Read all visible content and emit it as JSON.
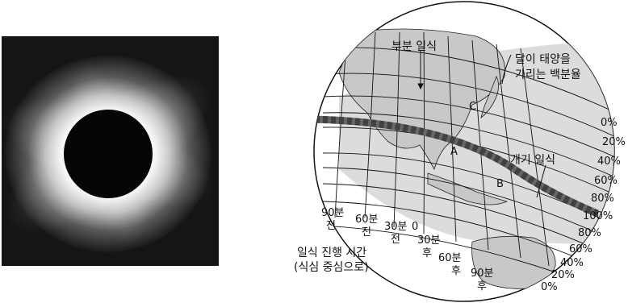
{
  "photo": {
    "subject": "total solar eclipse corona"
  },
  "map": {
    "labels": {
      "partial_eclipse": "부분 일식",
      "coverage_line1": "달이 태양을",
      "coverage_line2": "가리는 백분율",
      "annular_eclipse": "개기 일식",
      "point_a": "A",
      "point_b": "B",
      "point_c": "C",
      "time_title_line1": "일식 진행 시간",
      "time_title_line2": "(식심 중심으로)"
    },
    "time_labels": [
      {
        "line1": "90분",
        "line2": "전"
      },
      {
        "line1": "60분",
        "line2": "전"
      },
      {
        "line1": "30분",
        "line2": "전"
      },
      {
        "line1": "0",
        "line2": ""
      },
      {
        "line1": "30분",
        "line2": "후"
      },
      {
        "line1": "60분",
        "line2": "후"
      },
      {
        "line1": "90분",
        "line2": "후"
      }
    ],
    "percent_labels_north": [
      "0%",
      "20%",
      "40%",
      "60%",
      "80%"
    ],
    "percent_center": "100%",
    "percent_labels_south": [
      "80%",
      "60%",
      "40%",
      "20%",
      "0%"
    ]
  }
}
